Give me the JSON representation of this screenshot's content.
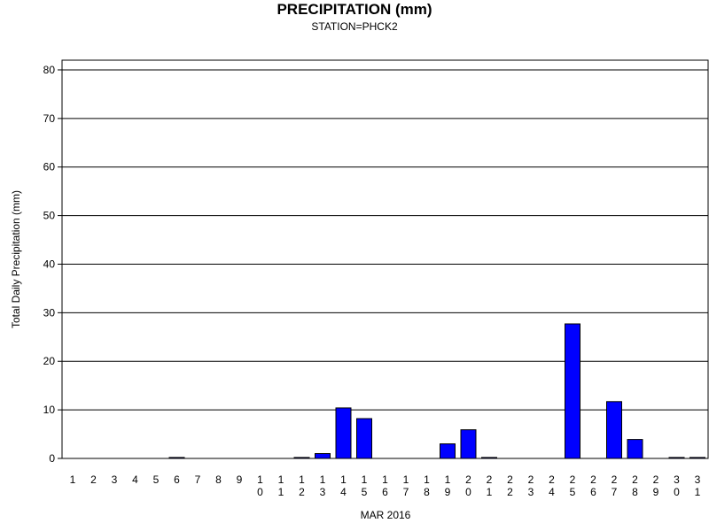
{
  "chart_data": {
    "type": "bar",
    "title": "PRECIPITATION (mm)",
    "subtitle": "STATION=PHCK2",
    "xlabel": "MAR 2016",
    "ylabel": "Total Daily Precipitation (mm)",
    "ylim": [
      0,
      82
    ],
    "yticks": [
      0,
      10,
      20,
      30,
      40,
      50,
      60,
      70,
      80
    ],
    "grid": true,
    "bar_color": "#0000ff",
    "categories": [
      "1",
      "2",
      "3",
      "4",
      "5",
      "6",
      "7",
      "8",
      "9",
      "10",
      "11",
      "12",
      "13",
      "14",
      "15",
      "16",
      "17",
      "18",
      "19",
      "20",
      "21",
      "22",
      "23",
      "24",
      "25",
      "26",
      "27",
      "28",
      "29",
      "30",
      "31"
    ],
    "values": [
      0,
      0,
      0,
      0,
      0,
      0.2,
      0,
      0,
      0,
      0,
      0,
      0.2,
      1.0,
      10.4,
      8.2,
      0,
      0,
      0,
      3.0,
      5.9,
      0.2,
      0,
      0,
      0,
      27.7,
      0,
      11.7,
      3.9,
      0,
      0.2,
      0.2
    ]
  }
}
